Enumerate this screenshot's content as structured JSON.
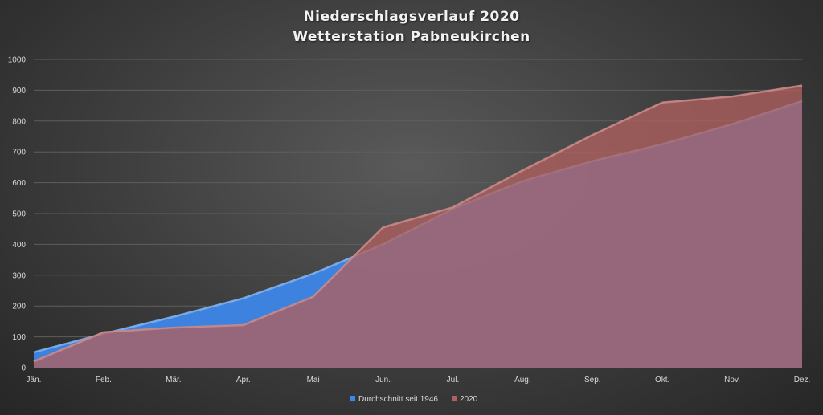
{
  "chart_data": {
    "type": "area",
    "title": "Niederschlagsverlauf 2020",
    "subtitle": "Wetterstation Pabneukirchen",
    "xlabel": "",
    "ylabel": "",
    "categories": [
      "Jän.",
      "Feb.",
      "Mär.",
      "Apr.",
      "Mai",
      "Jun.",
      "Jul.",
      "Aug.",
      "Sep.",
      "Okt.",
      "Nov.",
      "Dez."
    ],
    "ylim": [
      0,
      1000
    ],
    "yticks": [
      0,
      100,
      200,
      300,
      400,
      500,
      600,
      700,
      800,
      900,
      1000
    ],
    "grid": true,
    "legend_position": "bottom",
    "series": [
      {
        "name": "Durchschnitt seit 1946",
        "color": "#4a8fe0",
        "values": [
          50,
          110,
          165,
          225,
          305,
          400,
          515,
          605,
          670,
          725,
          790,
          865
        ]
      },
      {
        "name": "2020",
        "color": "#b05a58",
        "values": [
          20,
          115,
          130,
          138,
          230,
          455,
          520,
          640,
          755,
          860,
          880,
          915
        ]
      }
    ]
  }
}
